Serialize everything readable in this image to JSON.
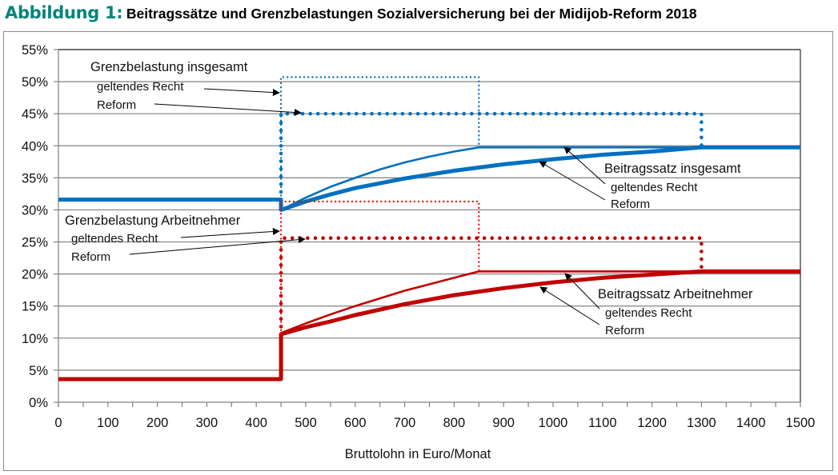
{
  "header": {
    "figure_label": "Abbildung 1:",
    "title": "Beitragssätze und Grenzbelastungen Sozialversicherung bei der Midijob-Reform 2018"
  },
  "colors": {
    "label_teal": "#00857a",
    "blue": "#0070c0",
    "red_dark": "#c00000",
    "red_light": "#ff0000",
    "grid": "#808080"
  },
  "chart_data": {
    "type": "line",
    "title": "Beitragssätze und Grenzbelastungen Sozialversicherung bei der Midijob-Reform 2018",
    "xlabel": "Bruttolohn in Euro/Monat",
    "ylabel": "",
    "xlim": [
      0,
      1500
    ],
    "ylim": [
      0,
      55
    ],
    "grid": true,
    "x_ticks": [
      "0",
      "100",
      "200",
      "300",
      "400",
      "500",
      "600",
      "700",
      "800",
      "900",
      "1000",
      "1100",
      "1200",
      "1300",
      "1400",
      "1500"
    ],
    "y_ticks": [
      "0%",
      "5%",
      "10%",
      "15%",
      "20%",
      "25%",
      "30%",
      "35%",
      "40%",
      "45%",
      "50%",
      "55%"
    ],
    "series": [
      {
        "name": "Grenzbelastung insgesamt – geltendes Recht",
        "color": "#0070c0",
        "style": "dotted-thin",
        "points": [
          [
            450,
            31.6
          ],
          [
            450,
            50.7
          ],
          [
            850,
            50.7
          ],
          [
            850,
            39.75
          ]
        ]
      },
      {
        "name": "Grenzbelastung insgesamt – Reform",
        "color": "#0070c0",
        "style": "dotted-thick",
        "points": [
          [
            450,
            31.6
          ],
          [
            450,
            45
          ],
          [
            1300,
            45
          ],
          [
            1300,
            39.75
          ]
        ]
      },
      {
        "name": "Beitragssatz insgesamt – geltendes Recht",
        "color": "#0070c0",
        "style": "solid-thin",
        "points": [
          [
            0,
            31.6
          ],
          [
            450,
            31.6
          ],
          [
            450,
            30.0
          ],
          [
            500,
            31.9
          ],
          [
            550,
            33.6
          ],
          [
            600,
            35.0
          ],
          [
            650,
            36.3
          ],
          [
            700,
            37.4
          ],
          [
            750,
            38.3
          ],
          [
            800,
            39.1
          ],
          [
            850,
            39.75
          ],
          [
            1500,
            39.75
          ]
        ]
      },
      {
        "name": "Beitragssatz insgesamt – Reform",
        "color": "#0070c0",
        "style": "solid-thick",
        "points": [
          [
            0,
            31.6
          ],
          [
            450,
            31.6
          ],
          [
            450,
            30.0
          ],
          [
            500,
            31.3
          ],
          [
            550,
            32.4
          ],
          [
            600,
            33.4
          ],
          [
            700,
            34.9
          ],
          [
            800,
            36.1
          ],
          [
            900,
            37.1
          ],
          [
            1000,
            37.9
          ],
          [
            1100,
            38.6
          ],
          [
            1200,
            39.1
          ],
          [
            1300,
            39.75
          ],
          [
            1500,
            39.75
          ]
        ]
      },
      {
        "name": "Grenzbelastung Arbeitnehmer – geltendes Recht",
        "color": "#ff0000",
        "style": "dotted-thin",
        "points": [
          [
            450,
            10.6
          ],
          [
            450,
            31.3
          ],
          [
            850,
            31.3
          ],
          [
            850,
            20.4
          ]
        ]
      },
      {
        "name": "Grenzbelastung Arbeitnehmer – Reform",
        "color": "#c00000",
        "style": "dotted-thick",
        "points": [
          [
            450,
            10.6
          ],
          [
            450,
            25.6
          ],
          [
            1300,
            25.6
          ],
          [
            1300,
            20.4
          ]
        ]
      },
      {
        "name": "Beitragssatz Arbeitnehmer – geltendes Recht",
        "color": "#c00000",
        "style": "solid-thin",
        "points": [
          [
            0,
            3.6
          ],
          [
            450,
            3.6
          ],
          [
            450,
            10.8
          ],
          [
            500,
            12.3
          ],
          [
            550,
            13.7
          ],
          [
            600,
            15.0
          ],
          [
            650,
            16.2
          ],
          [
            700,
            17.4
          ],
          [
            750,
            18.4
          ],
          [
            800,
            19.4
          ],
          [
            850,
            20.4
          ],
          [
            1500,
            20.4
          ]
        ]
      },
      {
        "name": "Beitragssatz Arbeitnehmer – Reform",
        "color": "#c00000",
        "style": "solid-thick",
        "points": [
          [
            0,
            3.6
          ],
          [
            450,
            3.6
          ],
          [
            450,
            10.6
          ],
          [
            500,
            11.7
          ],
          [
            550,
            12.6
          ],
          [
            600,
            13.6
          ],
          [
            700,
            15.3
          ],
          [
            800,
            16.7
          ],
          [
            900,
            17.8
          ],
          [
            1000,
            18.7
          ],
          [
            1100,
            19.4
          ],
          [
            1200,
            19.9
          ],
          [
            1300,
            20.4
          ],
          [
            1500,
            20.4
          ]
        ]
      }
    ],
    "annotations": {
      "gb_total": {
        "heading": "Grenzbelastung insgesamt",
        "current": "geltendes Recht",
        "reform": "Reform"
      },
      "gb_an": {
        "heading": "Grenzbelastung Arbeitnehmer",
        "current": "geltendes Recht",
        "reform": "Reform"
      },
      "bs_total": {
        "heading": "Beitragssatz insgesamt",
        "current": "geltendes Recht",
        "reform": "Reform"
      },
      "bs_an": {
        "heading": "Beitragssatz Arbeitnehmer",
        "current": "geltendes Recht",
        "reform": "Reform"
      }
    }
  }
}
